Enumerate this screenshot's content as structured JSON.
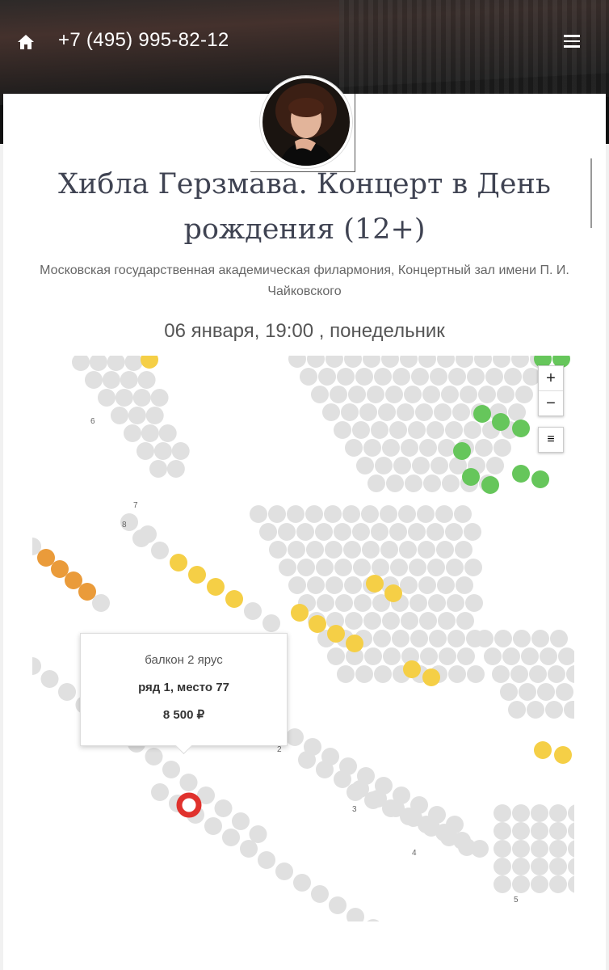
{
  "header": {
    "phone": "+7 (495) 995-82-12",
    "home_icon": "home-icon",
    "menu_icon": "hamburger-menu-icon"
  },
  "event": {
    "title": "Хибла Герзмава. Концерт в День рождения (12+)",
    "venue": "Московская государственная академическая филармония, Концертный зал имени П. И. Чайковского",
    "date": "06 января, 19:00 , понедельник"
  },
  "map": {
    "zoom_in": "+",
    "zoom_out": "−",
    "layers_icon": "≡",
    "row_labels": [
      "6",
      "7",
      "8",
      "2",
      "3",
      "4",
      "5"
    ],
    "colors": {
      "free": "#e0e0e0",
      "green": "#66c65b",
      "yellow": "#f5cf46",
      "orange": "#ea9b3a",
      "selected": "#e0322d"
    }
  },
  "tooltip": {
    "sector": "балкон 2 ярус",
    "seat": "ряд 1, место 77",
    "price": "8 500 ₽"
  }
}
